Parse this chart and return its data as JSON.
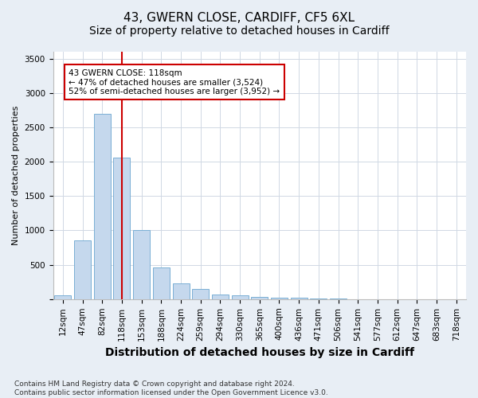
{
  "title1": "43, GWERN CLOSE, CARDIFF, CF5 6XL",
  "title2": "Size of property relative to detached houses in Cardiff",
  "xlabel": "Distribution of detached houses by size in Cardiff",
  "ylabel": "Number of detached properties",
  "categories": [
    "12sqm",
    "47sqm",
    "82sqm",
    "118sqm",
    "153sqm",
    "188sqm",
    "224sqm",
    "259sqm",
    "294sqm",
    "330sqm",
    "365sqm",
    "400sqm",
    "436sqm",
    "471sqm",
    "506sqm",
    "541sqm",
    "577sqm",
    "612sqm",
    "647sqm",
    "683sqm",
    "718sqm"
  ],
  "values": [
    60,
    850,
    2700,
    2060,
    1000,
    460,
    230,
    150,
    70,
    55,
    30,
    25,
    20,
    10,
    5,
    3,
    2,
    1,
    1,
    0,
    0
  ],
  "bar_color": "#c5d8ed",
  "bar_edge_color": "#7aafd4",
  "vline_x_idx": 3,
  "vline_color": "#cc0000",
  "annotation_text": "43 GWERN CLOSE: 118sqm\n← 47% of detached houses are smaller (3,524)\n52% of semi-detached houses are larger (3,952) →",
  "annotation_box_facecolor": "#ffffff",
  "annotation_box_edgecolor": "#cc0000",
  "ylim": [
    0,
    3600
  ],
  "yticks": [
    0,
    500,
    1000,
    1500,
    2000,
    2500,
    3000,
    3500
  ],
  "footnote": "Contains HM Land Registry data © Crown copyright and database right 2024.\nContains public sector information licensed under the Open Government Licence v3.0.",
  "fig_bg_color": "#e8eef5",
  "plot_bg_color": "#ffffff",
  "grid_color": "#d0d8e4",
  "title1_fontsize": 11,
  "title2_fontsize": 10,
  "xlabel_fontsize": 10,
  "ylabel_fontsize": 8,
  "tick_fontsize": 7.5,
  "footnote_fontsize": 6.5
}
